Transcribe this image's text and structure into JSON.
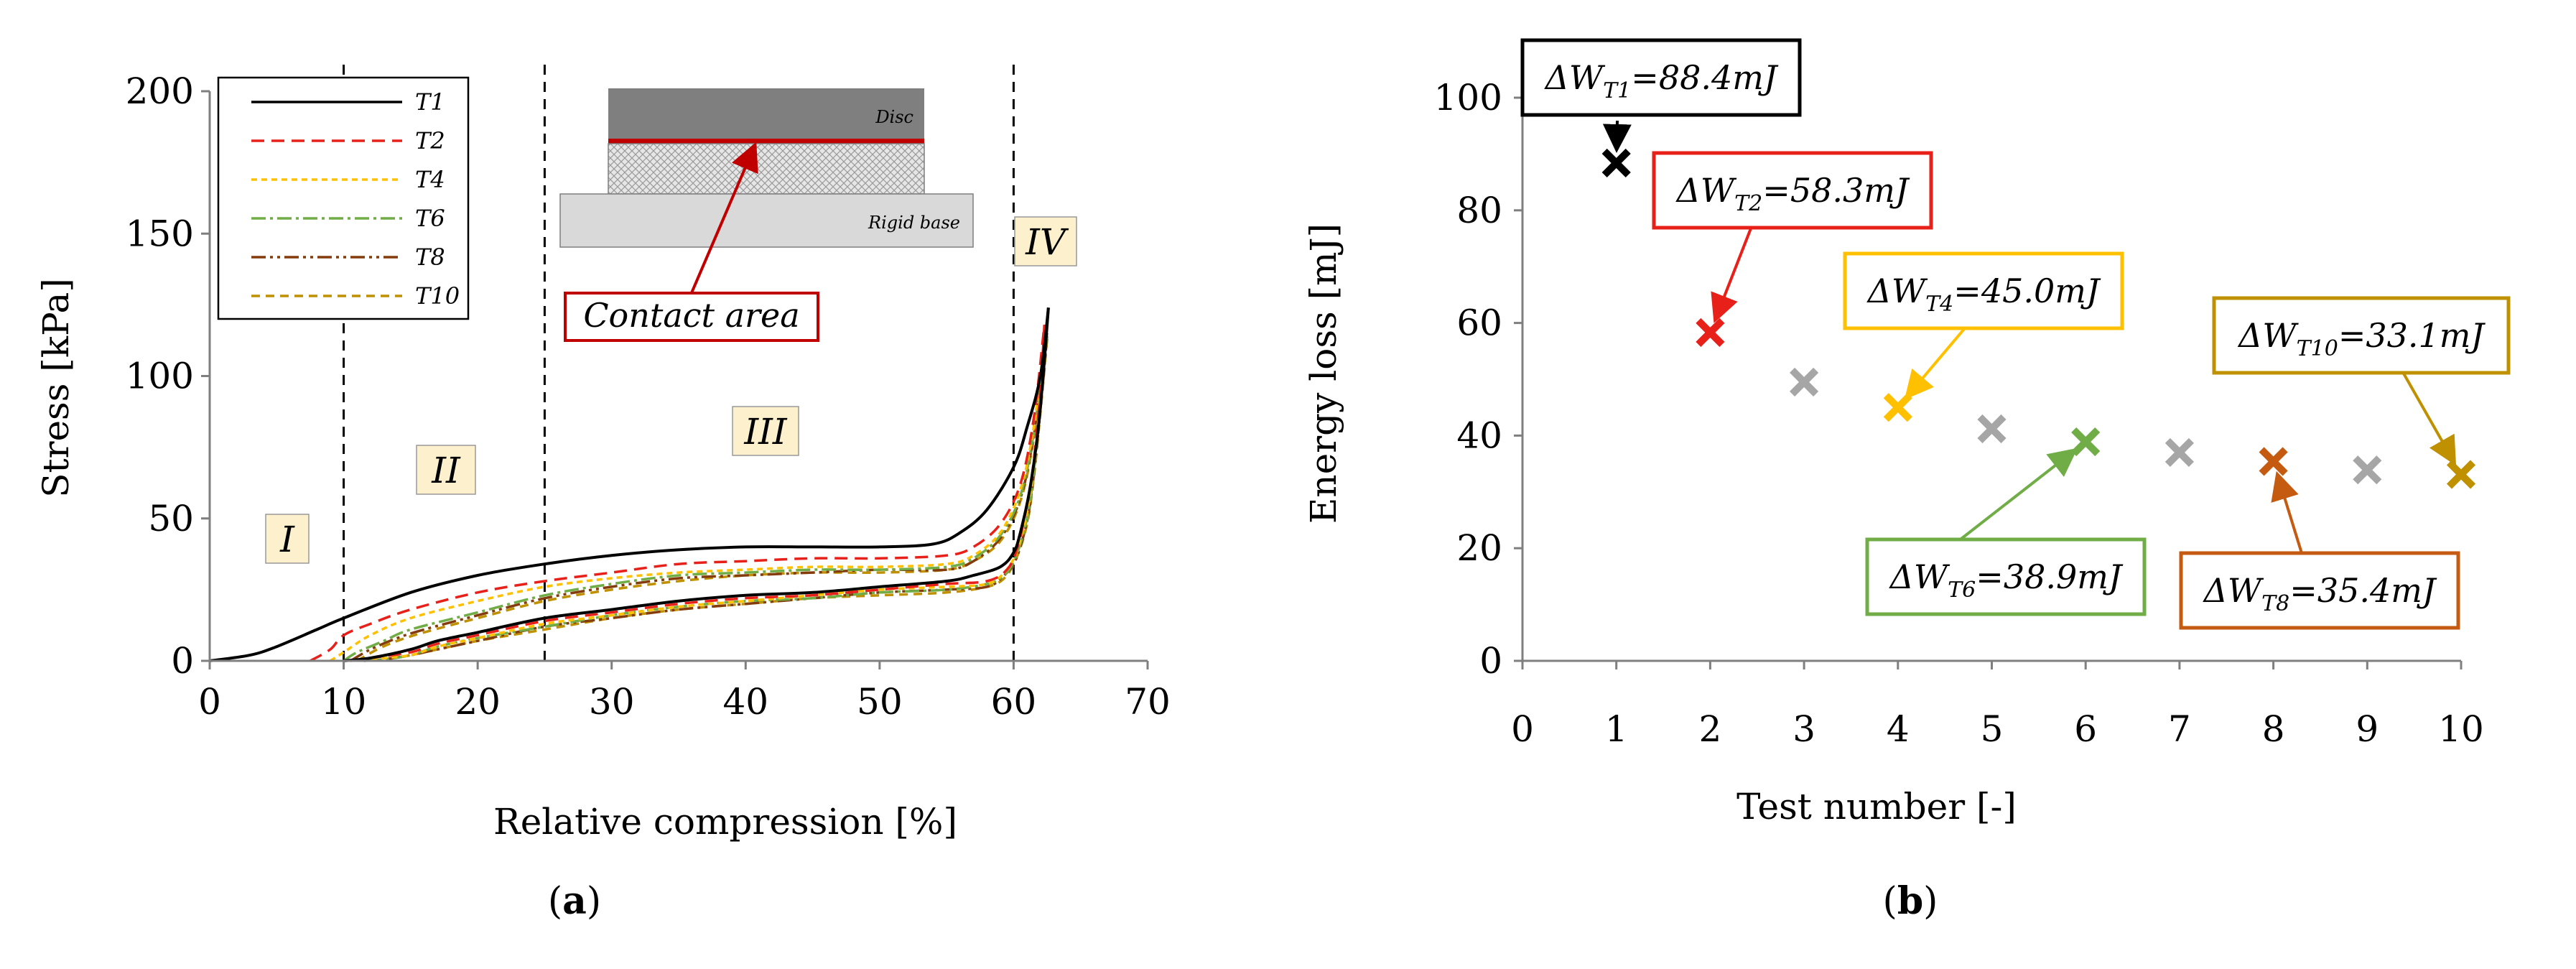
{
  "chart_data": [
    {
      "panel": "(a)",
      "type": "line",
      "xlabel": "Relative compression [%]",
      "ylabel": "Stress [kPa]",
      "xlim": [
        0,
        70
      ],
      "ylim": [
        0,
        200
      ],
      "xticks": [
        0,
        10,
        20,
        30,
        40,
        50,
        60,
        70
      ],
      "yticks": [
        0,
        50,
        100,
        150,
        200
      ],
      "vlines": [
        10,
        25,
        60
      ],
      "regions": [
        "I",
        "II",
        "III",
        "IV"
      ],
      "inset": {
        "top_label": "Disc",
        "bottom_label": "Rigid base",
        "callout": "Contact area"
      },
      "series": [
        {
          "name": "T1",
          "color": "#000000",
          "dash": "",
          "loading": [
            [
              0,
              0
            ],
            [
              3,
              2
            ],
            [
              5,
              5
            ],
            [
              8,
              11
            ],
            [
              10,
              15
            ],
            [
              15,
              24
            ],
            [
              20,
              30
            ],
            [
              25,
              34
            ],
            [
              30,
              37
            ],
            [
              35,
              39
            ],
            [
              40,
              40
            ],
            [
              45,
              40
            ],
            [
              50,
              40
            ],
            [
              54,
              41
            ],
            [
              56,
              45
            ],
            [
              58,
              53
            ],
            [
              60,
              68
            ],
            [
              61,
              82
            ],
            [
              62,
              100
            ],
            [
              62.6,
              124
            ]
          ],
          "unloading": [
            [
              62.6,
              124
            ],
            [
              62.2,
              100
            ],
            [
              61.8,
              80
            ],
            [
              61.2,
              60
            ],
            [
              60.5,
              45
            ],
            [
              60,
              38
            ],
            [
              59,
              33
            ],
            [
              57,
              30
            ],
            [
              55,
              28
            ],
            [
              50,
              26
            ],
            [
              45,
              24
            ],
            [
              40,
              23
            ],
            [
              35,
              21
            ],
            [
              30,
              18
            ],
            [
              25,
              15
            ],
            [
              20,
              10
            ],
            [
              17,
              7
            ],
            [
              15,
              4
            ],
            [
              12,
              1
            ],
            [
              10,
              0
            ]
          ]
        },
        {
          "name": "T2",
          "color": "#e8201a",
          "dash": "18,10",
          "loading": [
            [
              7.5,
              0
            ],
            [
              9,
              4
            ],
            [
              10,
              9
            ],
            [
              12,
              13
            ],
            [
              15,
              18
            ],
            [
              20,
              24
            ],
            [
              25,
              28
            ],
            [
              30,
              31
            ],
            [
              35,
              34
            ],
            [
              40,
              35
            ],
            [
              45,
              36
            ],
            [
              50,
              36
            ],
            [
              55,
              37
            ],
            [
              57,
              40
            ],
            [
              59,
              48
            ],
            [
              60.5,
              62
            ],
            [
              61.5,
              85
            ],
            [
              62.3,
              118
            ]
          ],
          "unloading": [
            [
              62.3,
              118
            ],
            [
              62,
              95
            ],
            [
              61.5,
              70
            ],
            [
              61,
              55
            ],
            [
              60.3,
              40
            ],
            [
              59.5,
              32
            ],
            [
              58,
              28
            ],
            [
              55,
              27
            ],
            [
              50,
              25
            ],
            [
              45,
              23
            ],
            [
              40,
              22
            ],
            [
              35,
              20
            ],
            [
              30,
              17
            ],
            [
              25,
              14
            ],
            [
              20,
              9
            ],
            [
              17,
              6
            ],
            [
              15,
              3
            ],
            [
              12,
              1
            ],
            [
              10.5,
              0
            ]
          ]
        },
        {
          "name": "T4",
          "color": "#ffc000",
          "dash": "8,6",
          "loading": [
            [
              9,
              0
            ],
            [
              10,
              3
            ],
            [
              12,
              9
            ],
            [
              15,
              15
            ],
            [
              20,
              21
            ],
            [
              25,
              26
            ],
            [
              30,
              29
            ],
            [
              35,
              31
            ],
            [
              40,
              32
            ],
            [
              45,
              33
            ],
            [
              50,
              33
            ],
            [
              55,
              34
            ],
            [
              57,
              37
            ],
            [
              59,
              45
            ],
            [
              60.5,
              60
            ],
            [
              61.5,
              82
            ],
            [
              62.4,
              116
            ]
          ],
          "unloading": [
            [
              62.4,
              116
            ],
            [
              62,
              92
            ],
            [
              61.5,
              68
            ],
            [
              61,
              52
            ],
            [
              60.2,
              38
            ],
            [
              59.3,
              31
            ],
            [
              58,
              27
            ],
            [
              55,
              26
            ],
            [
              50,
              25
            ],
            [
              45,
              23
            ],
            [
              40,
              21
            ],
            [
              35,
              19
            ],
            [
              30,
              16
            ],
            [
              25,
              13
            ],
            [
              20,
              8
            ],
            [
              17,
              5
            ],
            [
              15,
              2
            ],
            [
              12,
              0.5
            ],
            [
              11,
              0
            ]
          ]
        },
        {
          "name": "T6",
          "color": "#70ad47",
          "dash": "20,6,4,6",
          "loading": [
            [
              10,
              0
            ],
            [
              11,
              3
            ],
            [
              13,
              7
            ],
            [
              15,
              11
            ],
            [
              20,
              17
            ],
            [
              25,
              23
            ],
            [
              30,
              27
            ],
            [
              35,
              30
            ],
            [
              40,
              31
            ],
            [
              45,
              32
            ],
            [
              50,
              32
            ],
            [
              55,
              33
            ],
            [
              57,
              36
            ],
            [
              59,
              44
            ],
            [
              60.5,
              58
            ],
            [
              61.5,
              80
            ],
            [
              62.5,
              115
            ]
          ],
          "unloading": [
            [
              62.5,
              115
            ],
            [
              62,
              90
            ],
            [
              61.5,
              66
            ],
            [
              61,
              50
            ],
            [
              60.2,
              37
            ],
            [
              59.3,
              30
            ],
            [
              58,
              27
            ],
            [
              55,
              25
            ],
            [
              50,
              24
            ],
            [
              45,
              22
            ],
            [
              40,
              21
            ],
            [
              35,
              19
            ],
            [
              30,
              16
            ],
            [
              25,
              12
            ],
            [
              20,
              8
            ],
            [
              17,
              5
            ],
            [
              15,
              2
            ],
            [
              13,
              0.5
            ],
            [
              11,
              0
            ]
          ]
        },
        {
          "name": "T8",
          "color": "#843c0c",
          "dash": "20,6,4,6,4,6",
          "loading": [
            [
              10.5,
              0
            ],
            [
              12,
              4
            ],
            [
              14,
              8
            ],
            [
              16,
              11
            ],
            [
              20,
              16
            ],
            [
              25,
              22
            ],
            [
              30,
              26
            ],
            [
              35,
              29
            ],
            [
              40,
              30
            ],
            [
              45,
              31
            ],
            [
              50,
              32
            ],
            [
              55,
              32
            ],
            [
              57,
              35
            ],
            [
              59,
              43
            ],
            [
              60.5,
              57
            ],
            [
              61.5,
              79
            ],
            [
              62.5,
              114
            ]
          ],
          "unloading": [
            [
              62.5,
              114
            ],
            [
              62,
              88
            ],
            [
              61.5,
              65
            ],
            [
              61,
              49
            ],
            [
              60.2,
              36
            ],
            [
              59.3,
              30
            ],
            [
              58,
              26
            ],
            [
              55,
              25
            ],
            [
              50,
              24
            ],
            [
              45,
              22
            ],
            [
              40,
              20
            ],
            [
              35,
              18
            ],
            [
              30,
              15
            ],
            [
              25,
              12
            ],
            [
              20,
              7
            ],
            [
              17,
              4
            ],
            [
              15,
              2
            ],
            [
              13,
              0.5
            ],
            [
              11.5,
              0
            ]
          ]
        },
        {
          "name": "T10",
          "color": "#bf9000",
          "dash": "12,8",
          "loading": [
            [
              11,
              0
            ],
            [
              12.5,
              4
            ],
            [
              14,
              7
            ],
            [
              16,
              10
            ],
            [
              20,
              15
            ],
            [
              25,
              21
            ],
            [
              30,
              25
            ],
            [
              35,
              28
            ],
            [
              40,
              30
            ],
            [
              45,
              31
            ],
            [
              50,
              31
            ],
            [
              55,
              32
            ],
            [
              57,
              35
            ],
            [
              59,
              42
            ],
            [
              60.5,
              56
            ],
            [
              61.5,
              78
            ],
            [
              62.5,
              113
            ]
          ],
          "unloading": [
            [
              62.5,
              113
            ],
            [
              62,
              87
            ],
            [
              61.5,
              64
            ],
            [
              61,
              48
            ],
            [
              60.2,
              36
            ],
            [
              59.3,
              29
            ],
            [
              58,
              26
            ],
            [
              55,
              24
            ],
            [
              50,
              23
            ],
            [
              45,
              22
            ],
            [
              40,
              20
            ],
            [
              35,
              18
            ],
            [
              30,
              15
            ],
            [
              25,
              11
            ],
            [
              20,
              7
            ],
            [
              17,
              4
            ],
            [
              15,
              2
            ],
            [
              13,
              0.5
            ],
            [
              12,
              0
            ]
          ]
        }
      ]
    },
    {
      "panel": "(b)",
      "type": "scatter",
      "xlabel": "Test number [-]",
      "ylabel": "Energy loss [mJ]",
      "xlim": [
        0,
        10
      ],
      "ylim": [
        0,
        100
      ],
      "xticks": [
        0,
        1,
        2,
        3,
        4,
        5,
        6,
        7,
        8,
        9,
        10
      ],
      "yticks": [
        0,
        20,
        40,
        60,
        80,
        100
      ],
      "x": [
        1,
        2,
        3,
        4,
        5,
        6,
        7,
        8,
        9,
        10
      ],
      "y": [
        88.4,
        58.3,
        49.5,
        45.0,
        41.2,
        38.9,
        37.0,
        35.4,
        33.9,
        33.1
      ],
      "colors": [
        "#000000",
        "#e8201a",
        "#a6a6a6",
        "#ffc000",
        "#a6a6a6",
        "#70ad47",
        "#a6a6a6",
        "#c55a11",
        "#a6a6a6",
        "#bf9000"
      ],
      "annotations": [
        {
          "test": 1,
          "prefix": "ΔW",
          "sub": "T1",
          "value": "=88.4mJ",
          "color": "#000000"
        },
        {
          "test": 2,
          "prefix": "ΔW",
          "sub": "T2",
          "value": "=58.3mJ",
          "color": "#e8201a"
        },
        {
          "test": 4,
          "prefix": "ΔW",
          "sub": "T4",
          "value": "=45.0mJ",
          "color": "#ffc000"
        },
        {
          "test": 6,
          "prefix": "ΔW",
          "sub": "T6",
          "value": "=38.9mJ",
          "color": "#70ad47"
        },
        {
          "test": 8,
          "prefix": "ΔW",
          "sub": "T8",
          "value": "=35.4mJ",
          "color": "#c55a11"
        },
        {
          "test": 10,
          "prefix": "ΔW",
          "sub": "T10",
          "value": "=33.1mJ",
          "color": "#bf9000"
        }
      ]
    }
  ],
  "labels": {
    "panel_a": "a",
    "panel_b": "b"
  }
}
